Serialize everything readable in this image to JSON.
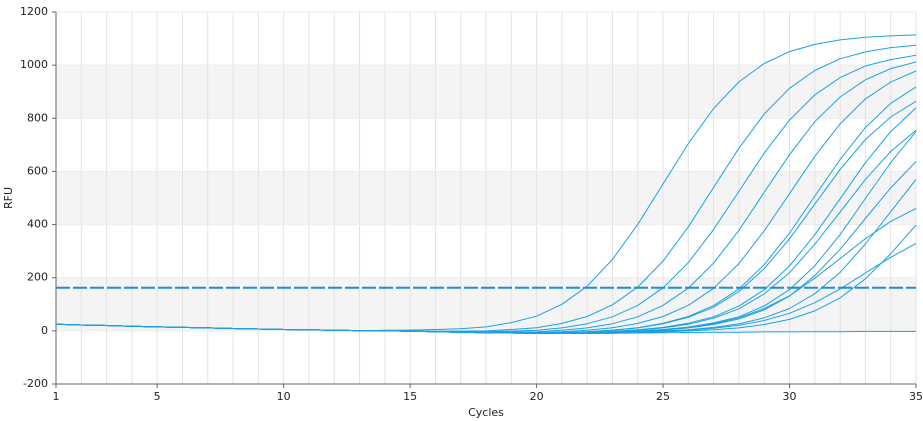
{
  "chart_data": {
    "type": "line",
    "x_label": "Cycles",
    "y_label": "RFU",
    "x": [
      1,
      2,
      3,
      4,
      5,
      6,
      7,
      8,
      9,
      10,
      11,
      12,
      13,
      14,
      15,
      16,
      17,
      18,
      19,
      20,
      21,
      22,
      23,
      24,
      25,
      26,
      27,
      28,
      29,
      30,
      31,
      32,
      33,
      34,
      35
    ],
    "xlim": [
      1,
      35
    ],
    "xticks": [
      1,
      5,
      10,
      15,
      20,
      25,
      30,
      35
    ],
    "ylim": [
      -200,
      1200
    ],
    "yticks": [
      -200,
      0,
      200,
      400,
      600,
      800,
      1000,
      1200
    ],
    "grid": true,
    "threshold": 162,
    "threshold_color": "#1a8fd8",
    "series": [
      {
        "color": "#1ba1e2",
        "values": [
          25,
          22,
          20,
          17,
          15,
          13,
          11,
          9,
          7,
          5,
          4,
          2,
          1,
          2,
          3,
          5,
          8,
          15,
          31,
          55,
          100,
          168,
          269,
          401,
          553,
          705,
          837,
          937,
          1006,
          1051,
          1078,
          1095,
          1105,
          1110,
          1114
        ]
      },
      {
        "color": "#1ba1e2",
        "values": [
          25,
          22,
          20,
          17,
          15,
          13,
          11,
          9,
          7,
          5,
          4,
          2,
          1,
          0,
          -1,
          -1,
          -1,
          0,
          5,
          12,
          28,
          54,
          98,
          165,
          263,
          392,
          540,
          687,
          816,
          913,
          980,
          1024,
          1050,
          1066,
          1075
        ]
      },
      {
        "color": "#1ba1e2",
        "values": [
          25,
          22,
          20,
          17,
          15,
          13,
          11,
          9,
          7,
          5,
          4,
          2,
          1,
          0,
          -1,
          -3,
          -3,
          -3,
          -1,
          2,
          11,
          27,
          53,
          96,
          162,
          257,
          382,
          525,
          669,
          793,
          888,
          953,
          997,
          1021,
          1037
        ]
      },
      {
        "color": "#1ba1e2",
        "values": [
          25,
          22,
          20,
          17,
          15,
          13,
          11,
          9,
          7,
          5,
          4,
          2,
          1,
          0,
          -1,
          -3,
          -5,
          -5,
          -4,
          -3,
          2,
          11,
          27,
          53,
          96,
          161,
          255,
          378,
          521,
          663,
          787,
          880,
          945,
          987,
          1012
        ]
      },
      {
        "color": "#1ba1e2",
        "values": [
          25,
          22,
          20,
          17,
          15,
          13,
          11,
          9,
          7,
          5,
          4,
          2,
          1,
          0,
          -1,
          -3,
          -5,
          -7,
          -6,
          -6,
          -3,
          2,
          12,
          28,
          54,
          96,
          160,
          253,
          376,
          516,
          657,
          779,
          873,
          936,
          978
        ]
      },
      {
        "color": "#1ba1e2",
        "values": [
          25,
          22,
          20,
          17,
          15,
          13,
          11,
          9,
          7,
          5,
          4,
          2,
          1,
          0,
          -1,
          -3,
          -5,
          -7,
          -8,
          -8,
          -6,
          -3,
          3,
          12,
          29,
          54,
          95,
          157,
          249,
          368,
          507,
          645,
          765,
          856,
          918
        ]
      },
      {
        "color": "#1ba1e2",
        "values": [
          25,
          22,
          20,
          17,
          15,
          13,
          11,
          9,
          7,
          5,
          4,
          2,
          1,
          0,
          -1,
          -3,
          -5,
          -7,
          -8,
          -8,
          -6,
          -4,
          2,
          11,
          27,
          51,
          89,
          148,
          234,
          346,
          477,
          607,
          720,
          805,
          864
        ]
      },
      {
        "color": "#1ba1e2",
        "values": [
          25,
          22,
          20,
          17,
          15,
          13,
          11,
          9,
          7,
          5,
          4,
          2,
          1,
          0,
          -1,
          -3,
          -5,
          -7,
          -8,
          -10,
          -8,
          -6,
          -2,
          4,
          13,
          29,
          53,
          93,
          155,
          244,
          362,
          497,
          633,
          750,
          839
        ]
      },
      {
        "color": "#1ba1e2",
        "values": [
          25,
          22,
          20,
          17,
          15,
          13,
          11,
          9,
          7,
          5,
          4,
          2,
          1,
          0,
          -1,
          -3,
          -5,
          -7,
          -8,
          -10,
          -8,
          -6,
          -3,
          2,
          11,
          25,
          48,
          83,
          139,
          219,
          326,
          447,
          570,
          675,
          755
        ]
      },
      {
        "color": "#1ba1e2",
        "values": [
          25,
          22,
          20,
          17,
          15,
          13,
          11,
          9,
          7,
          5,
          4,
          2,
          1,
          0,
          -1,
          -3,
          -5,
          -7,
          -8,
          -10,
          -10,
          -8,
          -5,
          -1,
          5,
          14,
          30,
          53,
          94,
          155,
          245,
          362,
          498,
          633,
          750
        ]
      },
      {
        "color": "#1ba1e2",
        "values": [
          25,
          22,
          20,
          17,
          15,
          13,
          11,
          9,
          7,
          5,
          4,
          2,
          1,
          0,
          -1,
          -3,
          -5,
          -7,
          -8,
          -10,
          -10,
          -8,
          -6,
          -2,
          3,
          11,
          24,
          45,
          79,
          131,
          208,
          307,
          423,
          538,
          637
        ]
      },
      {
        "color": "#1ba1e2",
        "values": [
          25,
          22,
          20,
          17,
          15,
          13,
          11,
          9,
          7,
          5,
          4,
          2,
          1,
          0,
          -1,
          -3,
          -5,
          -7,
          -8,
          -10,
          -10,
          -10,
          -7,
          -4,
          -1,
          4,
          13,
          26,
          49,
          84,
          140,
          220,
          327,
          448,
          570
        ]
      },
      {
        "color": "#1ba1e2",
        "values": [
          25,
          22,
          20,
          17,
          15,
          13,
          11,
          9,
          7,
          5,
          4,
          2,
          1,
          0,
          -1,
          -3,
          -5,
          -7,
          -8,
          -10,
          -10,
          -10,
          -9,
          -6,
          -4,
          0,
          4,
          11,
          24,
          43,
          75,
          124,
          196,
          290,
          398
        ]
      },
      {
        "color": "#1ba1e2",
        "values": [
          25,
          22,
          20,
          17,
          15,
          13,
          11,
          9,
          7,
          5,
          4,
          2,
          1,
          0,
          -1,
          -3,
          -5,
          -7,
          -8,
          -10,
          -9,
          -8,
          -5,
          -2,
          4,
          13,
          27,
          49,
          84,
          132,
          198,
          272,
          347,
          412,
          461
        ]
      },
      {
        "color": "#1ba1e2",
        "values": [
          25,
          22,
          20,
          17,
          15,
          13,
          11,
          9,
          7,
          5,
          4,
          2,
          1,
          0,
          -1,
          -3,
          -5,
          -7,
          -8,
          -10,
          -10,
          -10,
          -7,
          -5,
          0,
          3,
          10,
          21,
          39,
          66,
          106,
          158,
          218,
          277,
          329
        ]
      },
      {
        "color": "#1ba1e2",
        "values": [
          25,
          22,
          20,
          17,
          15,
          13,
          11,
          9,
          7,
          5,
          4,
          2,
          1,
          0,
          -1,
          -3,
          -5,
          -7,
          -8,
          -10,
          -10,
          -10,
          -9,
          -8,
          -7,
          -6,
          -5,
          -5,
          -4,
          -4,
          -3,
          -3,
          -2,
          -2,
          -2
        ]
      }
    ]
  }
}
